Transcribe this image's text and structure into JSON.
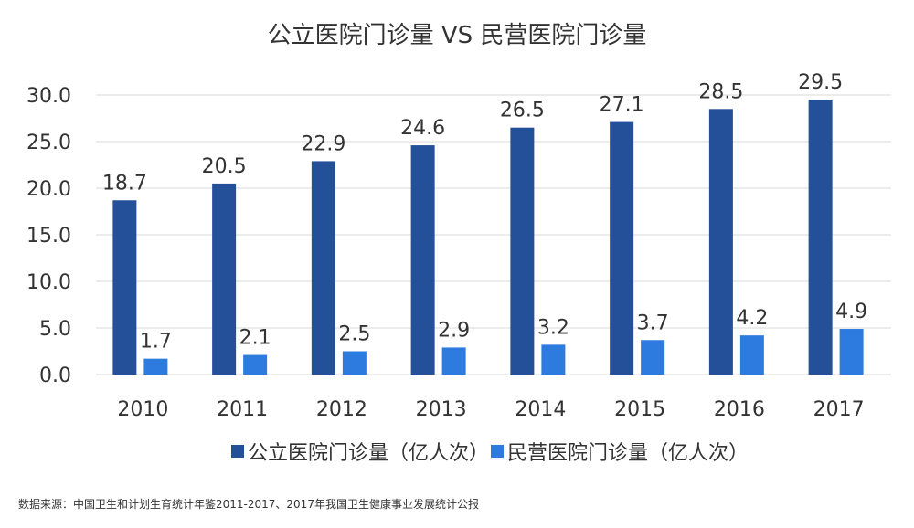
{
  "chart_data": {
    "type": "bar",
    "title": "公立医院门诊量 VS 民营医院门诊量",
    "categories": [
      "2010",
      "2011",
      "2012",
      "2013",
      "2014",
      "2015",
      "2016",
      "2017"
    ],
    "series": [
      {
        "name": "公立医院门诊量（亿人次）",
        "color": "#24509A",
        "values": [
          18.7,
          20.5,
          22.9,
          24.6,
          26.5,
          27.1,
          28.5,
          29.5
        ],
        "labels": [
          "18.7",
          "20.5",
          "22.9",
          "24.6",
          "26.5",
          "27.1",
          "28.5",
          "29.5"
        ]
      },
      {
        "name": "民营医院门诊量（亿人次）",
        "color": "#2E7BE0",
        "values": [
          1.7,
          2.1,
          2.5,
          2.9,
          3.2,
          3.7,
          4.2,
          4.9
        ],
        "labels": [
          "1.7",
          "2.1",
          "2.5",
          "2.9",
          "3.2",
          "3.7",
          "4.2",
          "4.9"
        ]
      }
    ],
    "yticks": [
      0,
      5,
      10,
      15,
      20,
      25,
      30
    ],
    "ytick_labels": [
      "0.0",
      "5.0",
      "10.0",
      "15.0",
      "20.0",
      "25.0",
      "30.0"
    ],
    "ylim": [
      0,
      30
    ],
    "xlabel": "",
    "ylabel": "",
    "grid": true,
    "legend": "bottom-center"
  },
  "source_note": "数据来源：中国卫生和计划生育统计年鉴2011-2017、2017年我国卫生健康事业发展统计公报"
}
